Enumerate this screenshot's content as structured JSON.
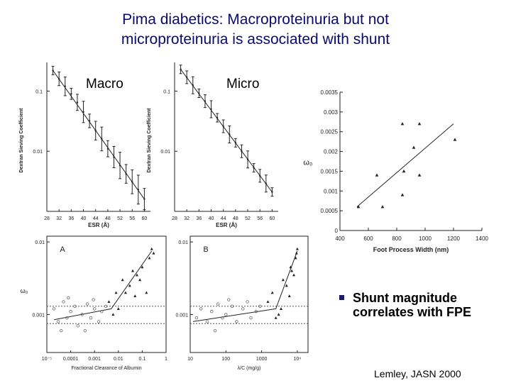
{
  "slide": {
    "title_line1": "Pima diabetics: Macroproteinuria but not",
    "title_line2": "microproteinuria is associated with shunt",
    "bullet": "Shunt magnitude correlates with FPE",
    "citation": "Lemley, JASN 2000"
  },
  "chart_data": [
    {
      "id": "macro",
      "type": "line",
      "label": "Macro",
      "xlabel": "ESR (Å)",
      "ylabel": "Dextran Sieving Coefficient",
      "xlim": [
        28,
        62
      ],
      "ylim_log": [
        0.001,
        0.3
      ],
      "x_ticks": [
        "28",
        "32",
        "36",
        "40",
        "44",
        "48",
        "52",
        "56",
        "60"
      ],
      "y_ticks": [
        "0.1",
        "0.01"
      ],
      "x": [
        30,
        32,
        34,
        36,
        38,
        40,
        42,
        44,
        46,
        48,
        50,
        52,
        54,
        56,
        58,
        60
      ],
      "y": [
        0.22,
        0.16,
        0.12,
        0.09,
        0.065,
        0.045,
        0.032,
        0.022,
        0.016,
        0.011,
        0.008,
        0.0058,
        0.0042,
        0.0031,
        0.0023,
        0.0016
      ]
    },
    {
      "id": "micro",
      "type": "line",
      "label": "Micro",
      "xlabel": "ESR (Å)",
      "ylabel": "Dextran Sieving Coefficient",
      "xlim": [
        28,
        62
      ],
      "ylim_log": [
        0.001,
        0.3
      ],
      "x_ticks": [
        "28",
        "32",
        "36",
        "40",
        "44",
        "48",
        "52",
        "56",
        "60"
      ],
      "y_ticks": [
        "0.1",
        "0.01"
      ],
      "x": [
        30,
        32,
        34,
        36,
        38,
        40,
        42,
        44,
        46,
        48,
        50,
        52,
        54,
        56,
        58,
        60
      ],
      "y": [
        0.23,
        0.17,
        0.125,
        0.092,
        0.068,
        0.05,
        0.036,
        0.026,
        0.019,
        0.0138,
        0.01,
        0.0073,
        0.0053,
        0.0039,
        0.0029,
        0.0021
      ]
    },
    {
      "id": "fpw",
      "type": "scatter",
      "xlabel": "Foot Process Width (nm)",
      "ylabel": "ω₀",
      "xlim": [
        400,
        1400
      ],
      "ylim": [
        0,
        0.0035
      ],
      "x_ticks": [
        "400",
        "600",
        "800",
        "1000",
        "1200",
        "1400"
      ],
      "y_ticks": [
        "0",
        "0.0005",
        "0.001",
        "0.0015",
        "0.002",
        "0.0025",
        "0.003",
        "0.0035"
      ],
      "x": [
        530,
        660,
        700,
        840,
        850,
        840,
        960,
        920,
        960,
        1210
      ],
      "y": [
        0.0006,
        0.0014,
        0.0006,
        0.0027,
        0.0015,
        0.0009,
        0.0027,
        0.0021,
        0.0014,
        0.0023
      ],
      "fit": {
        "x": [
          520,
          1200
        ],
        "y": [
          0.0006,
          0.0027
        ]
      }
    },
    {
      "id": "A",
      "type": "scatter",
      "label": "A",
      "xlabel": "Fractional Clearance of Albumin",
      "ylabel": "ω₀",
      "x_ticks": [
        "10⁻⁵",
        "0.0001",
        "0.001",
        "0.01",
        "0.1",
        "1"
      ],
      "y_ticks": [
        "0.01",
        "0.001"
      ],
      "series": [
        {
          "name": "filled",
          "x": [
            0.004,
            0.006,
            0.008,
            0.01,
            0.015,
            0.02,
            0.03,
            0.04,
            0.05,
            0.06,
            0.08,
            0.1,
            0.15,
            0.2,
            0.25,
            0.3
          ],
          "y": [
            0.0015,
            0.001,
            0.002,
            0.0012,
            0.003,
            0.002,
            0.0025,
            0.004,
            0.0018,
            0.0035,
            0.003,
            0.0045,
            0.002,
            0.006,
            0.008,
            0.007
          ]
        },
        {
          "name": "open",
          "x": [
            2e-05,
            3e-05,
            5e-05,
            7e-05,
            0.0001,
            0.00015,
            0.0002,
            0.0003,
            0.0005,
            0.0007,
            0.001,
            0.0015,
            0.002,
            0.003,
            4e-05,
            8e-05,
            0.0004,
            0.0009
          ],
          "y": [
            0.0012,
            0.0008,
            0.0015,
            0.0009,
            0.0011,
            0.0013,
            0.0007,
            0.001,
            0.0014,
            0.0009,
            0.0012,
            0.0008,
            0.0011,
            0.0013,
            0.0006,
            0.0017,
            0.0006,
            0.0016
          ]
        }
      ],
      "fit": {
        "x": [
          2e-05,
          0.005,
          0.25
        ],
        "y": [
          0.00085,
          0.0012,
          0.0075
        ]
      }
    },
    {
      "id": "B",
      "type": "scatter",
      "label": "B",
      "xlabel": "λ/C (mg/g)",
      "ylabel": "",
      "x_ticks": [
        "10",
        "100",
        "1000",
        "10⁴"
      ],
      "y_ticks": [
        "0.01",
        "0.001"
      ],
      "series": [
        {
          "name": "filled",
          "x": [
            1500,
            2000,
            3000,
            4000,
            5000,
            6000,
            7000,
            8000,
            9000,
            10000,
            3500,
            2500,
            6500,
            9500
          ],
          "y": [
            0.0015,
            0.002,
            0.001,
            0.003,
            0.0025,
            0.0018,
            0.004,
            0.0035,
            0.006,
            0.008,
            0.0012,
            0.0009,
            0.0045,
            0.007
          ]
        },
        {
          "name": "open",
          "x": [
            15,
            20,
            30,
            40,
            60,
            80,
            100,
            150,
            200,
            300,
            400,
            500,
            700,
            900,
            50,
            120
          ],
          "y": [
            0.0009,
            0.0012,
            0.0008,
            0.0011,
            0.0014,
            0.0009,
            0.001,
            0.0013,
            0.0008,
            0.0012,
            0.0015,
            0.0009,
            0.0011,
            0.0013,
            0.0006,
            0.0016
          ]
        }
      ],
      "fit": {
        "x": [
          12,
          2500,
          10000
        ],
        "y": [
          0.0008,
          0.0012,
          0.0075
        ]
      }
    }
  ],
  "colors": {
    "title": "#0a0a6e",
    "bullet": "#1a1a66",
    "ink": "#222222",
    "grid": "#555555"
  }
}
